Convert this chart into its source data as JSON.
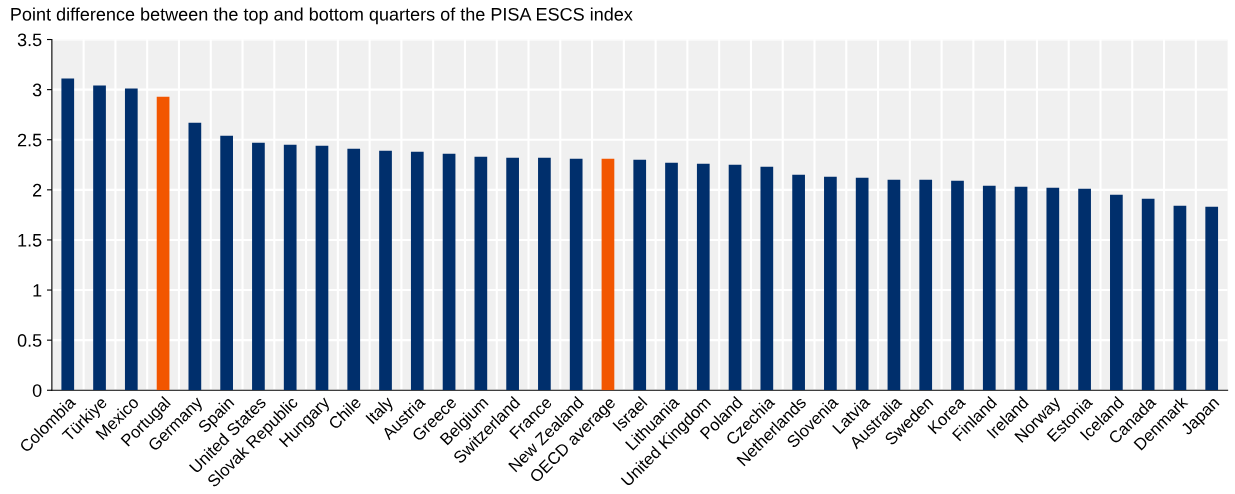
{
  "chart_data": {
    "type": "bar",
    "title": "Point difference between the top and bottom quarters of the PISA ESCS index",
    "categories": [
      "Colombia",
      "Türkiye",
      "Mexico",
      "Portugal",
      "Germany",
      "Spain",
      "United States",
      "Slovak Republic",
      "Hungary",
      "Chile",
      "Italy",
      "Austria",
      "Greece",
      "Belgium",
      "Switzerland",
      "France",
      "New Zealand",
      "OECD average",
      "Israel",
      "Lithuania",
      "United Kingdom",
      "Poland",
      "Czechia",
      "Netherlands",
      "Slovenia",
      "Latvia",
      "Australia",
      "Sweden",
      "Korea",
      "Finland",
      "Ireland",
      "Norway",
      "Estonia",
      "Iceland",
      "Canada",
      "Denmark",
      "Japan"
    ],
    "values": [
      3.11,
      3.04,
      3.01,
      2.93,
      2.67,
      2.54,
      2.47,
      2.45,
      2.44,
      2.41,
      2.39,
      2.38,
      2.36,
      2.33,
      2.32,
      2.32,
      2.31,
      2.31,
      2.3,
      2.27,
      2.26,
      2.25,
      2.23,
      2.15,
      2.13,
      2.12,
      2.1,
      2.1,
      2.09,
      2.04,
      2.03,
      2.02,
      2.01,
      1.95,
      1.91,
      1.84,
      1.83
    ],
    "colors": [
      "#002f6c",
      "#002f6c",
      "#002f6c",
      "#f25600",
      "#002f6c",
      "#002f6c",
      "#002f6c",
      "#002f6c",
      "#002f6c",
      "#002f6c",
      "#002f6c",
      "#002f6c",
      "#002f6c",
      "#002f6c",
      "#002f6c",
      "#002f6c",
      "#002f6c",
      "#f25600",
      "#002f6c",
      "#002f6c",
      "#002f6c",
      "#002f6c",
      "#002f6c",
      "#002f6c",
      "#002f6c",
      "#002f6c",
      "#002f6c",
      "#002f6c",
      "#002f6c",
      "#002f6c",
      "#002f6c",
      "#002f6c",
      "#002f6c",
      "#002f6c",
      "#002f6c",
      "#002f6c",
      "#002f6c"
    ],
    "ylim": [
      0,
      3.5
    ],
    "yticks": [
      0,
      0.5,
      1,
      1.5,
      2,
      2.5,
      3,
      3.5
    ],
    "grid": true
  }
}
